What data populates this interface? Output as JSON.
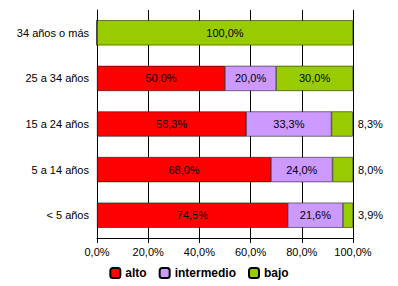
{
  "chart_data": {
    "type": "bar",
    "orientation": "horizontal",
    "stacked": true,
    "data_labels": true,
    "grid": true,
    "legend": "bottom",
    "categories": [
      "34 años o más",
      "25 a 34 años",
      "15 a 24 años",
      "5 a 14 años",
      "< 5 años"
    ],
    "series": [
      {
        "name": "alto",
        "color": "#ff0000",
        "values": [
          0,
          50.0,
          58.3,
          68.0,
          74.5
        ],
        "value_labels": [
          null,
          "50,0%",
          "58,3%",
          "68,0%",
          "74,5%"
        ]
      },
      {
        "name": "intermedio",
        "color": "#cc99ff",
        "values": [
          0,
          20.0,
          33.3,
          24.0,
          21.6
        ],
        "value_labels": [
          null,
          "20,0%",
          "33,3%",
          "24,0%",
          "21,6%"
        ]
      },
      {
        "name": "bajo",
        "color": "#99cc00",
        "values": [
          100.0,
          30.0,
          8.3,
          8.0,
          3.9
        ],
        "value_labels": [
          "100,0%",
          "30,0%",
          "8,3%",
          "8,0%",
          "3,9%"
        ]
      }
    ],
    "xlim": [
      0,
      100
    ],
    "xticks": [
      {
        "value": 0,
        "label": "0,0%"
      },
      {
        "value": 20,
        "label": "20,0%"
      },
      {
        "value": 40,
        "label": "40,0%"
      },
      {
        "value": 60,
        "label": "60,0%"
      },
      {
        "value": 80,
        "label": "80,0%"
      },
      {
        "value": 100,
        "label": "100,0%"
      }
    ]
  }
}
